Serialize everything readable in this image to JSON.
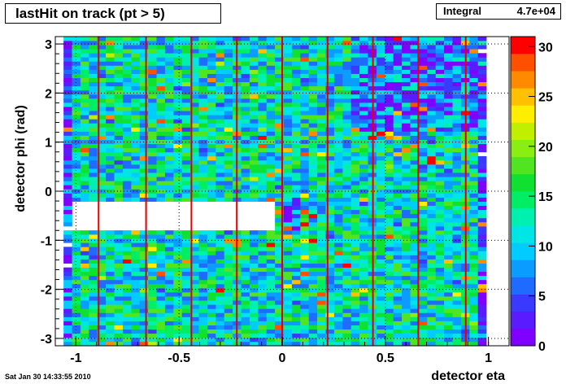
{
  "header": {
    "title": "lastHit on track (pt > 5)",
    "stats_label": "Integral",
    "stats_value": "4.7e+04"
  },
  "footer": {
    "timestamp": "Sat Jan 30 14:33:55 2010"
  },
  "chart_data": {
    "type": "heatmap",
    "title": "lastHit on track (pt > 5)",
    "xlabel": "detector eta",
    "ylabel": "detector phi (rad)",
    "xlim": [
      -1.1,
      1.1
    ],
    "ylim": [
      -3.15,
      3.15
    ],
    "x_ticks": [
      -1,
      -0.5,
      0,
      0.5,
      1
    ],
    "x_tick_labels": [
      "-1",
      "-0.5",
      "0",
      "0.5",
      "1"
    ],
    "y_ticks": [
      -3,
      -2,
      -1,
      0,
      1,
      2,
      3
    ],
    "y_tick_labels": [
      "-3",
      "-2",
      "-1",
      "0",
      "1",
      "2",
      "3"
    ],
    "z_range": [
      0,
      31
    ],
    "z_ticks": [
      0,
      5,
      10,
      15,
      20,
      25,
      30
    ],
    "z_tick_labels": [
      "0",
      "5",
      "10",
      "15",
      "20",
      "25",
      "30"
    ],
    "integral": 47000,
    "empty_region": {
      "eta": [
        -1.0,
        -0.04
      ],
      "phi": [
        -0.78,
        -0.25
      ]
    },
    "red_lines_eta": [
      -0.89,
      -0.66,
      -0.44,
      -0.22,
      0.0,
      0.22,
      0.44,
      0.66,
      0.89
    ],
    "dotted_lines_eta": [
      -1.0,
      -0.5,
      0.5
    ],
    "palette": [
      "#7f00ff",
      "#5a1bff",
      "#3a3aff",
      "#1f6bff",
      "#0a9cff",
      "#00ccff",
      "#00e5e5",
      "#00f0b0",
      "#00ee66",
      "#10e030",
      "#50e520",
      "#8aee10",
      "#c0f000",
      "#ffee00",
      "#ffc000",
      "#ff8a00",
      "#ff5000",
      "#ff0000"
    ],
    "grid": true
  }
}
